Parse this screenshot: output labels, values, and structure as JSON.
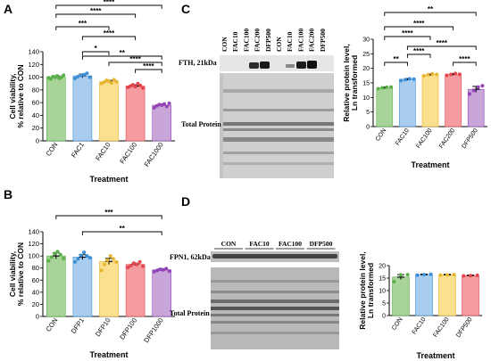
{
  "panels": {
    "A": "A",
    "B": "B",
    "C": "C",
    "D": "D"
  },
  "colors": {
    "CON": "#a8d49a",
    "CON_pt": "#5bb04a",
    "L1": "#a9cdee",
    "L1_pt": "#3c8fd6",
    "L2": "#fbe08e",
    "L2_pt": "#e8b52e",
    "L3": "#f59ca0",
    "L3_pt": "#e3464d",
    "L4": "#c9a6da",
    "L4_pt": "#9344b6"
  },
  "blots": {
    "C_target": "FTH, 21kDa",
    "C_total": "Total Protein",
    "C_lanes": [
      "CON",
      "FAC10",
      "FAC100",
      "FAC200",
      "DFP500",
      "CON",
      "FAC10",
      "FAC100",
      "FAC200",
      "DFP500"
    ],
    "D_target": "FPN1, 62kDa",
    "D_total": "Total Protein",
    "D_groups": [
      "CON",
      "FAC10",
      "FAC100",
      "DFP500"
    ]
  },
  "chart_data": [
    {
      "id": "A",
      "type": "bar",
      "xlabel": "Treatment",
      "ylabel": [
        "Cell viability,",
        "% relative to CON"
      ],
      "ylim": [
        0,
        140
      ],
      "yticks": [
        0,
        20,
        40,
        60,
        80,
        100,
        120,
        140
      ],
      "categories": [
        "CON",
        "FAC1",
        "FAC10",
        "FAC100",
        "FAC1000"
      ],
      "values": [
        100,
        102,
        93,
        86,
        56
      ],
      "errors": [
        2,
        3,
        2,
        2,
        2
      ],
      "points": [
        [
          99,
          97,
          101,
          100,
          102,
          98,
          100,
          103
        ],
        [
          98,
          101,
          103,
          104,
          106,
          100
        ],
        [
          90,
          92,
          95,
          94,
          91,
          96,
          93
        ],
        [
          84,
          86,
          88,
          85,
          90,
          87,
          83
        ],
        [
          52,
          55,
          57,
          56,
          58,
          54,
          59
        ]
      ],
      "significance": [
        {
          "from": 0,
          "to": 4,
          "label": "****"
        },
        {
          "from": 0,
          "to": 3,
          "label": "****"
        },
        {
          "from": 0,
          "to": 2,
          "label": "***"
        },
        {
          "from": 1,
          "to": 3,
          "label": "****"
        },
        {
          "from": 1,
          "to": 2,
          "label": "*"
        },
        {
          "from": 1,
          "to": 4,
          "label": "**"
        },
        {
          "from": 2,
          "to": 4,
          "label": "****"
        },
        {
          "from": 3,
          "to": 4,
          "label": "****"
        }
      ]
    },
    {
      "id": "B",
      "type": "bar",
      "xlabel": "Treatment",
      "ylabel": [
        "Cell viability,",
        "% relative to CON"
      ],
      "ylim": [
        0,
        140
      ],
      "yticks": [
        0,
        20,
        40,
        60,
        80,
        100,
        120,
        140
      ],
      "categories": [
        "CON",
        "DFP1",
        "DFP10",
        "DFP100",
        "DFP1000"
      ],
      "values": [
        100,
        98,
        91,
        86,
        77
      ],
      "errors": [
        5,
        4,
        5,
        2,
        2
      ],
      "points": [
        [
          92,
          98,
          104,
          107,
          102,
          96
        ],
        [
          90,
          95,
          101,
          106,
          100,
          97
        ],
        [
          76,
          86,
          93,
          100,
          95,
          90
        ],
        [
          81,
          84,
          88,
          86,
          90,
          83
        ],
        [
          74,
          76,
          78,
          77,
          79,
          75
        ]
      ],
      "significance": [
        {
          "from": 0,
          "to": 4,
          "label": "***"
        },
        {
          "from": 1,
          "to": 4,
          "label": "**"
        }
      ]
    },
    {
      "id": "C",
      "type": "bar",
      "xlabel": "Treatment",
      "ylabel": [
        "Relative protein level,",
        "Ln transformed"
      ],
      "ylim": [
        0,
        30
      ],
      "yticks": [
        0,
        5,
        10,
        15,
        20,
        25,
        30
      ],
      "categories": [
        "CON",
        "FAC10",
        "FAC100",
        "FAC200",
        "DFP500"
      ],
      "values": [
        13.3,
        16.2,
        17.8,
        17.9,
        12.8
      ],
      "errors": [
        0.3,
        0.3,
        0.3,
        0.3,
        1.0
      ],
      "points": [
        [
          13.0,
          13.3,
          13.5,
          13.6
        ],
        [
          15.8,
          16.1,
          16.4,
          16.3
        ],
        [
          17.4,
          17.8,
          18.1,
          17.9
        ],
        [
          17.6,
          17.9,
          18.2,
          18.0
        ],
        [
          11.2,
          12.4,
          13.6,
          14.0
        ]
      ],
      "significance": [
        {
          "from": 0,
          "to": 4,
          "label": "**"
        },
        {
          "from": 0,
          "to": 3,
          "label": "****"
        },
        {
          "from": 0,
          "to": 2,
          "label": "****"
        },
        {
          "from": 1,
          "to": 4,
          "label": "****"
        },
        {
          "from": 0,
          "to": 1,
          "label": "**"
        },
        {
          "from": 1,
          "to": 2,
          "label": "****"
        },
        {
          "from": 3,
          "to": 4,
          "label": "****"
        }
      ]
    },
    {
      "id": "D",
      "type": "bar",
      "xlabel": "Treatment",
      "ylabel": [
        "Relative protein level,",
        "Ln transformed"
      ],
      "ylim": [
        0,
        20
      ],
      "yticks": [
        0,
        5,
        10,
        15,
        20
      ],
      "categories": [
        "CON",
        "FAC10",
        "FAC100",
        "DFP500"
      ],
      "values": [
        15.4,
        16.4,
        16.3,
        16.0
      ],
      "errors": [
        1.0,
        0.2,
        0.2,
        0.2
      ],
      "points": [
        [
          13.6,
          16.3,
          16.4
        ],
        [
          16.2,
          16.4,
          16.5
        ],
        [
          16.2,
          16.3,
          16.4
        ],
        [
          15.9,
          16.0,
          16.1
        ]
      ],
      "significance": []
    }
  ]
}
